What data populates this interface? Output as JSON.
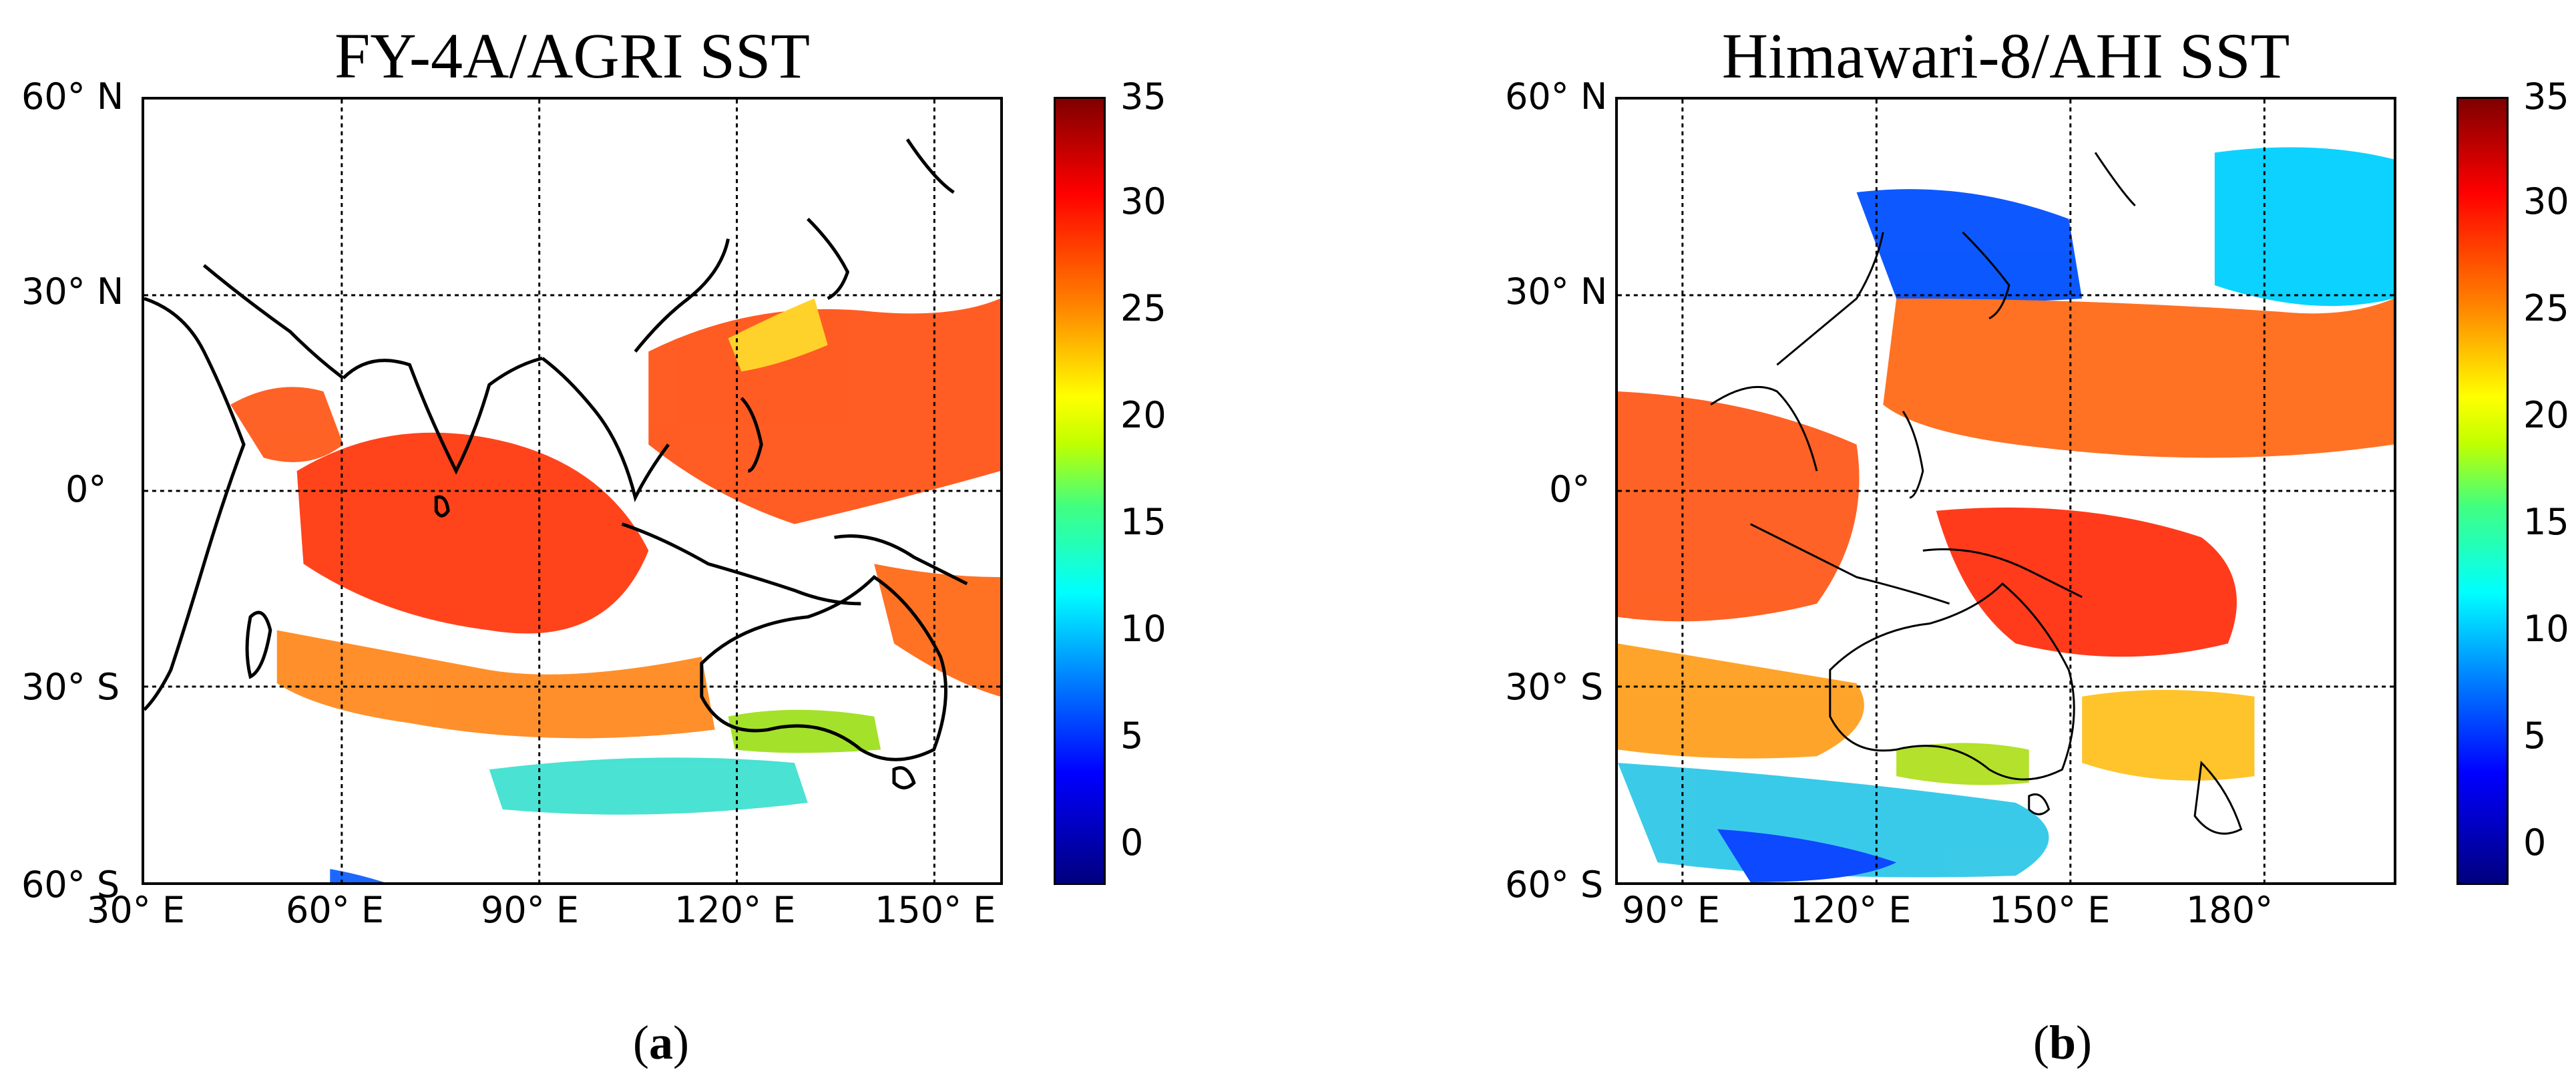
{
  "panels": [
    {
      "id": "a",
      "title": "FY-4A/AGRI SST",
      "caption_open": "(",
      "caption_letter": "a",
      "caption_close": ")",
      "lat_labels": [
        "60° N",
        "30° N",
        "0°",
        "30° S",
        "60° S"
      ],
      "lon_labels": [
        "30° E",
        "60° E",
        "90° E",
        "120° E",
        "150° E"
      ],
      "colorbar_ticks": [
        "35",
        "30",
        "25",
        "20",
        "15",
        "10",
        "5",
        "0"
      ],
      "lon_range": [
        30,
        160
      ],
      "lat_range": [
        -60,
        60
      ],
      "gridlines": {
        "lon": [
          60,
          90,
          120,
          150
        ],
        "lat": [
          30,
          0,
          -30
        ]
      }
    },
    {
      "id": "b",
      "title": "Himawari-8/AHI SST",
      "caption_open": "(",
      "caption_letter": "b",
      "caption_close": ")",
      "lat_labels": [
        "60° N",
        "30° N",
        "0°",
        "30° S",
        "60° S"
      ],
      "lon_labels": [
        "90° E",
        "120° E",
        "150° E",
        "180°"
      ],
      "colorbar_ticks": [
        "35",
        "30",
        "25",
        "20",
        "15",
        "10",
        "5",
        "0"
      ],
      "lon_range": [
        80,
        200
      ],
      "lat_range": [
        -60,
        60
      ],
      "gridlines": {
        "lon": [
          90,
          120,
          150,
          180
        ],
        "lat": [
          30,
          0,
          -30
        ]
      }
    }
  ],
  "colormap": {
    "name": "jet",
    "range": [
      -2,
      35
    ],
    "colors": [
      "#00007f",
      "#0000ff",
      "#0080ff",
      "#00ffff",
      "#40ff80",
      "#c0ff00",
      "#ffff00",
      "#ff8000",
      "#ff0000",
      "#7f0000"
    ]
  }
}
